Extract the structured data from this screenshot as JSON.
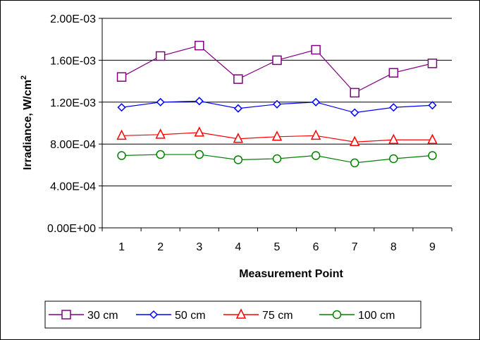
{
  "chart_data": {
    "type": "line",
    "title": "",
    "xlabel": "Measurement Point",
    "ylabel_main": "Irradiance, W/cm",
    "ylabel_sup": "2",
    "x": [
      1,
      2,
      3,
      4,
      5,
      6,
      7,
      8,
      9
    ],
    "x_tick_labels": [
      "1",
      "2",
      "3",
      "4",
      "5",
      "6",
      "7",
      "8",
      "9"
    ],
    "ylim": [
      0,
      0.002
    ],
    "y_ticks": [
      0,
      0.0004,
      0.0008,
      0.0012,
      0.0016,
      0.002
    ],
    "y_tick_labels": [
      "0.00E+00",
      "4.00E-04",
      "8.00E-04",
      "1.20E-03",
      "1.60E-03",
      "2.00E-03"
    ],
    "grid": "horizontal major gridlines",
    "legend_position": "bottom",
    "series": [
      {
        "name": "30 cm",
        "color": "#800080",
        "marker": "square",
        "values": [
          0.00144,
          0.00164,
          0.00174,
          0.00142,
          0.0016,
          0.0017,
          0.00129,
          0.00148,
          0.00157
        ]
      },
      {
        "name": "50 cm",
        "color": "#0000ff",
        "marker": "diamond",
        "values": [
          0.00115,
          0.0012,
          0.00121,
          0.00114,
          0.00118,
          0.0012,
          0.0011,
          0.00115,
          0.00117
        ]
      },
      {
        "name": "75 cm",
        "color": "#ff0000",
        "marker": "triangle",
        "values": [
          0.00088,
          0.00089,
          0.00091,
          0.00085,
          0.00087,
          0.00088,
          0.00082,
          0.00084,
          0.00084
        ]
      },
      {
        "name": "100 cm",
        "color": "#008000",
        "marker": "circle",
        "values": [
          0.00069,
          0.0007,
          0.0007,
          0.00065,
          0.00066,
          0.00069,
          0.00062,
          0.00066,
          0.00069
        ]
      }
    ]
  }
}
